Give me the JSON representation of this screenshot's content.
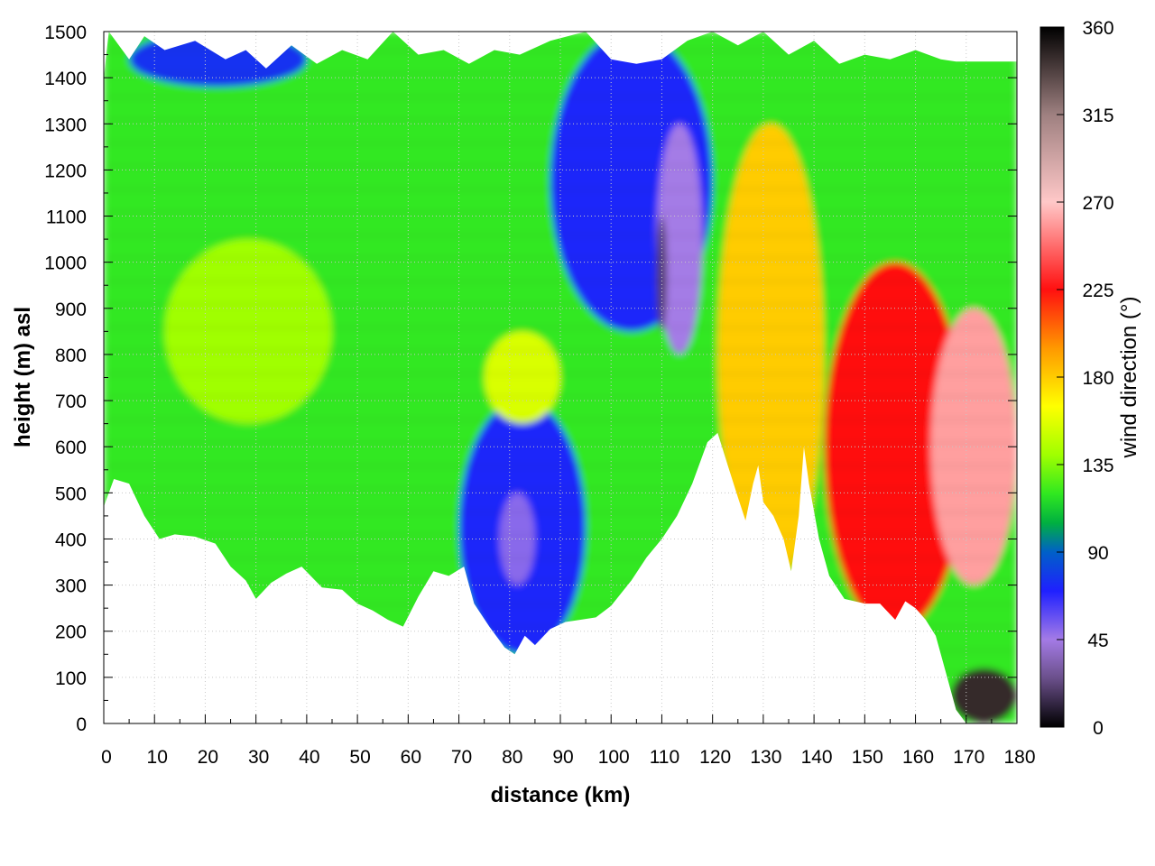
{
  "chart_data": {
    "type": "heatmap",
    "title": "",
    "xlabel": "distance (km)",
    "ylabel": "height (m) asl",
    "colorbar_label": "wind direction (°)",
    "xlim": [
      0,
      180
    ],
    "ylim": [
      0,
      1500
    ],
    "clim": [
      0,
      360
    ],
    "x_ticks": [
      "0",
      "10",
      "20",
      "30",
      "40",
      "50",
      "60",
      "70",
      "80",
      "90",
      "100",
      "110",
      "120",
      "130",
      "140",
      "150",
      "160",
      "170",
      "180"
    ],
    "y_ticks": [
      "0",
      "100",
      "200",
      "300",
      "400",
      "500",
      "600",
      "700",
      "800",
      "900",
      "1000",
      "1100",
      "1200",
      "1300",
      "1400",
      "1500"
    ],
    "colorbar_ticks": [
      "0",
      "45",
      "90",
      "135",
      "180",
      "225",
      "270",
      "315",
      "360"
    ],
    "grid": true,
    "colormap_stops": [
      {
        "v": 0,
        "color": "#000000"
      },
      {
        "v": 25,
        "color": "#6a4f8a"
      },
      {
        "v": 45,
        "color": "#a47be6"
      },
      {
        "v": 70,
        "color": "#1f20ff"
      },
      {
        "v": 90,
        "color": "#0060c8"
      },
      {
        "v": 105,
        "color": "#00b040"
      },
      {
        "v": 120,
        "color": "#30e820"
      },
      {
        "v": 140,
        "color": "#a0ff00"
      },
      {
        "v": 165,
        "color": "#ffff00"
      },
      {
        "v": 195,
        "color": "#ff9800"
      },
      {
        "v": 225,
        "color": "#ff1010"
      },
      {
        "v": 270,
        "color": "#ffc8c8"
      },
      {
        "v": 315,
        "color": "#9e8080"
      },
      {
        "v": 360,
        "color": "#000000"
      }
    ],
    "terrain": [
      {
        "x": 0,
        "h": 470
      },
      {
        "x": 2,
        "h": 530
      },
      {
        "x": 5,
        "h": 520
      },
      {
        "x": 8,
        "h": 450
      },
      {
        "x": 11,
        "h": 400
      },
      {
        "x": 14,
        "h": 410
      },
      {
        "x": 18,
        "h": 405
      },
      {
        "x": 22,
        "h": 390
      },
      {
        "x": 25,
        "h": 340
      },
      {
        "x": 28,
        "h": 310
      },
      {
        "x": 30,
        "h": 270
      },
      {
        "x": 33,
        "h": 305
      },
      {
        "x": 36,
        "h": 325
      },
      {
        "x": 39,
        "h": 340
      },
      {
        "x": 43,
        "h": 295
      },
      {
        "x": 47,
        "h": 290
      },
      {
        "x": 50,
        "h": 260
      },
      {
        "x": 53,
        "h": 245
      },
      {
        "x": 56,
        "h": 225
      },
      {
        "x": 59,
        "h": 210
      },
      {
        "x": 62,
        "h": 275
      },
      {
        "x": 65,
        "h": 330
      },
      {
        "x": 68,
        "h": 320
      },
      {
        "x": 71,
        "h": 340
      },
      {
        "x": 73,
        "h": 260
      },
      {
        "x": 76,
        "h": 210
      },
      {
        "x": 79,
        "h": 165
      },
      {
        "x": 81,
        "h": 150
      },
      {
        "x": 83,
        "h": 190
      },
      {
        "x": 85,
        "h": 170
      },
      {
        "x": 88,
        "h": 205
      },
      {
        "x": 91,
        "h": 220
      },
      {
        "x": 94,
        "h": 225
      },
      {
        "x": 97,
        "h": 230
      },
      {
        "x": 100,
        "h": 255
      },
      {
        "x": 104,
        "h": 310
      },
      {
        "x": 107,
        "h": 360
      },
      {
        "x": 110,
        "h": 400
      },
      {
        "x": 113,
        "h": 450
      },
      {
        "x": 116,
        "h": 520
      },
      {
        "x": 119,
        "h": 610
      },
      {
        "x": 121,
        "h": 630
      },
      {
        "x": 123,
        "h": 560
      },
      {
        "x": 125,
        "h": 490
      },
      {
        "x": 126.5,
        "h": 440
      },
      {
        "x": 128,
        "h": 520
      },
      {
        "x": 129,
        "h": 560
      },
      {
        "x": 130,
        "h": 480
      },
      {
        "x": 132,
        "h": 450
      },
      {
        "x": 134,
        "h": 400
      },
      {
        "x": 135.5,
        "h": 330
      },
      {
        "x": 137,
        "h": 450
      },
      {
        "x": 138,
        "h": 600
      },
      {
        "x": 139,
        "h": 520
      },
      {
        "x": 141,
        "h": 400
      },
      {
        "x": 143,
        "h": 320
      },
      {
        "x": 146,
        "h": 270
      },
      {
        "x": 150,
        "h": 260
      },
      {
        "x": 153,
        "h": 260
      },
      {
        "x": 156,
        "h": 225
      },
      {
        "x": 158,
        "h": 265
      },
      {
        "x": 160,
        "h": 250
      },
      {
        "x": 162,
        "h": 225
      },
      {
        "x": 164,
        "h": 190
      },
      {
        "x": 166,
        "h": 110
      },
      {
        "x": 168,
        "h": 30
      },
      {
        "x": 170,
        "h": 0
      },
      {
        "x": 180,
        "h": 0
      }
    ],
    "top_boundary": [
      {
        "x": 0,
        "h": 1400
      },
      {
        "x": 1,
        "h": 1500
      },
      {
        "x": 5,
        "h": 1440
      },
      {
        "x": 8,
        "h": 1490
      },
      {
        "x": 12,
        "h": 1460
      },
      {
        "x": 18,
        "h": 1480
      },
      {
        "x": 24,
        "h": 1440
      },
      {
        "x": 28,
        "h": 1460
      },
      {
        "x": 32,
        "h": 1420
      },
      {
        "x": 37,
        "h": 1470
      },
      {
        "x": 42,
        "h": 1430
      },
      {
        "x": 47,
        "h": 1460
      },
      {
        "x": 52,
        "h": 1440
      },
      {
        "x": 57,
        "h": 1500
      },
      {
        "x": 62,
        "h": 1450
      },
      {
        "x": 67,
        "h": 1460
      },
      {
        "x": 72,
        "h": 1430
      },
      {
        "x": 77,
        "h": 1460
      },
      {
        "x": 82,
        "h": 1450
      },
      {
        "x": 88,
        "h": 1480
      },
      {
        "x": 95,
        "h": 1500
      },
      {
        "x": 100,
        "h": 1440
      },
      {
        "x": 105,
        "h": 1430
      },
      {
        "x": 110,
        "h": 1440
      },
      {
        "x": 115,
        "h": 1480
      },
      {
        "x": 120,
        "h": 1500
      },
      {
        "x": 125,
        "h": 1470
      },
      {
        "x": 130,
        "h": 1500
      },
      {
        "x": 135,
        "h": 1450
      },
      {
        "x": 140,
        "h": 1480
      },
      {
        "x": 145,
        "h": 1430
      },
      {
        "x": 150,
        "h": 1450
      },
      {
        "x": 155,
        "h": 1440
      },
      {
        "x": 160,
        "h": 1460
      },
      {
        "x": 165,
        "h": 1440
      },
      {
        "x": 168,
        "h": 1435
      },
      {
        "x": 180,
        "h": 1435
      }
    ],
    "regions": [
      {
        "name": "west-green",
        "x": [
          0,
          70
        ],
        "direction": 120
      },
      {
        "name": "west-yellowgreen-core",
        "x": [
          12,
          45
        ],
        "h": [
          650,
          1050
        ],
        "direction": 140
      },
      {
        "name": "upper-blue-streaks",
        "x": [
          5,
          40
        ],
        "h": [
          1380,
          1500
        ],
        "direction": 75
      },
      {
        "name": "lower-blue-pocket",
        "x": [
          70,
          95
        ],
        "h": [
          150,
          700
        ],
        "direction": 72
      },
      {
        "name": "lilac-core-low",
        "x": [
          78,
          85
        ],
        "h": [
          300,
          500
        ],
        "direction": 50
      },
      {
        "name": "yellow-patch",
        "x": [
          75,
          90
        ],
        "h": [
          650,
          850
        ],
        "direction": 155
      },
      {
        "name": "upper-blue-wedge",
        "x": [
          88,
          120
        ],
        "h": [
          850,
          1500
        ],
        "direction": 72
      },
      {
        "name": "violet-spikes",
        "x": [
          109,
          118
        ],
        "h": [
          800,
          1300
        ],
        "direction": 45
      },
      {
        "name": "dark-spike",
        "x": [
          109,
          111
        ],
        "h": [
          850,
          1100
        ],
        "direction": 20
      },
      {
        "name": "orange-yellow",
        "x": [
          121,
          142
        ],
        "h": [
          300,
          1300
        ],
        "direction": 180
      },
      {
        "name": "red-east",
        "x": [
          142,
          170
        ],
        "h": [
          200,
          1000
        ],
        "direction": 225
      },
      {
        "name": "pink-east",
        "x": [
          163,
          180
        ],
        "h": [
          300,
          900
        ],
        "direction": 260
      },
      {
        "name": "dark-bottom",
        "x": [
          167,
          180
        ],
        "h": [
          0,
          120
        ],
        "direction": 345
      }
    ]
  }
}
